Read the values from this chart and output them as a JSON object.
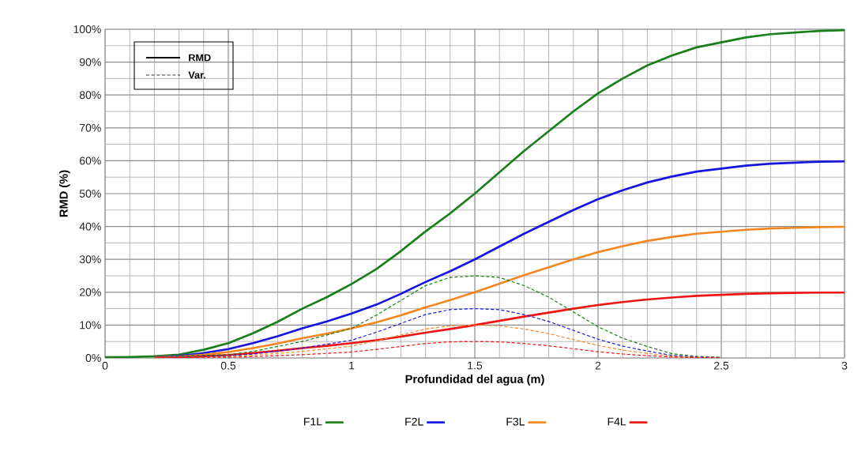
{
  "chart_data": {
    "type": "line",
    "xlabel": "Profundidad del agua (m)",
    "ylabel": "RMD (%)",
    "annotations": [
      "RMD",
      "Var."
    ],
    "x": [
      0,
      0.1,
      0.2,
      0.3,
      0.4,
      0.5,
      0.6,
      0.7,
      0.8,
      0.9,
      1.0,
      1.1,
      1.2,
      1.3,
      1.4,
      1.5,
      1.6,
      1.7,
      1.8,
      1.9,
      2.0,
      2.1,
      2.2,
      2.3,
      2.4,
      2.5,
      2.6,
      2.7,
      2.8,
      2.9,
      3.0
    ],
    "xlim": [
      0,
      3
    ],
    "xticks": [
      0,
      0.5,
      1,
      1.5,
      2,
      2.5,
      3
    ],
    "ylim": [
      0,
      100
    ],
    "yticks": [
      {
        "value": 0,
        "label": "0%"
      },
      {
        "value": 10,
        "label": "10%"
      },
      {
        "value": 20,
        "label": "20%"
      },
      {
        "value": 30,
        "label": "30%"
      },
      {
        "value": 40,
        "label": "40%"
      },
      {
        "value": 50,
        "label": "50%"
      },
      {
        "value": 60,
        "label": "60%"
      },
      {
        "value": 70,
        "label": "70%"
      },
      {
        "value": 80,
        "label": "80%"
      },
      {
        "value": 90,
        "label": "90%"
      },
      {
        "value": 100,
        "label": "100%"
      }
    ],
    "grid": true,
    "legend": "bottom",
    "marker": "none",
    "series": [
      {
        "name": "F1L",
        "color": "#1a7f1a",
        "line_style": "solid",
        "values": [
          0.2,
          0.3,
          0.5,
          1,
          2.5,
          4.5,
          7.5,
          11,
          15,
          18.5,
          22.5,
          27,
          32.5,
          38.5,
          44,
          50,
          56.5,
          63,
          69,
          75,
          80.5,
          85,
          89,
          92,
          94.5,
          96,
          97.5,
          98.5,
          99,
          99.5,
          99.7
        ]
      },
      {
        "name": "F2L",
        "color": "#1515e0",
        "line_style": "solid",
        "values": [
          null,
          null,
          0.3,
          0.6,
          1.5,
          2.7,
          4.5,
          6.6,
          9,
          11.1,
          13.5,
          16.2,
          19.5,
          23.1,
          26.4,
          30,
          33.9,
          37.8,
          41.4,
          45,
          48.3,
          51,
          53.4,
          55.2,
          56.7,
          57.6,
          58.5,
          59.1,
          59.4,
          59.7,
          59.8
        ]
      },
      {
        "name": "F3L",
        "color": "#f5861f",
        "line_style": "solid",
        "values": [
          null,
          null,
          0.2,
          0.4,
          1,
          1.8,
          3,
          4.4,
          6,
          7.4,
          9,
          10.8,
          13,
          15.4,
          17.6,
          20,
          22.6,
          25.2,
          27.6,
          30,
          32.2,
          34,
          35.6,
          36.8,
          37.8,
          38.4,
          39,
          39.4,
          39.6,
          39.8,
          39.9
        ]
      },
      {
        "name": "F4L",
        "color": "#f01515",
        "line_style": "solid",
        "values": [
          null,
          null,
          0.1,
          0.2,
          0.5,
          0.9,
          1.5,
          2.2,
          3,
          3.7,
          4.5,
          5.4,
          6.5,
          7.7,
          8.8,
          10,
          11.3,
          12.6,
          13.8,
          15,
          16.1,
          17,
          17.8,
          18.4,
          18.9,
          19.2,
          19.5,
          19.7,
          19.8,
          19.9,
          19.9
        ]
      },
      {
        "color": "#1a7f1a",
        "line_style": "dashed",
        "values": [
          null,
          null,
          0.2,
          0.5,
          0.8,
          1,
          2,
          3.5,
          5,
          7,
          9,
          13,
          17.5,
          22,
          24.5,
          25,
          24.5,
          22,
          18.5,
          14,
          9.5,
          6,
          3.5,
          1.3,
          0.5,
          0.2,
          null,
          null,
          null,
          null,
          null
        ]
      },
      {
        "color": "#1515e0",
        "line_style": "dashed",
        "values": [
          null,
          null,
          0.1,
          0.3,
          0.5,
          0.6,
          1.2,
          2.1,
          3,
          4.2,
          5.4,
          7.8,
          10.5,
          13.2,
          14.7,
          15,
          14.7,
          13.2,
          11.1,
          8.4,
          5.7,
          3.6,
          2.1,
          0.8,
          0.3,
          0.1,
          null,
          null,
          null,
          null,
          null
        ]
      },
      {
        "color": "#f5861f",
        "line_style": "dashed",
        "values": [
          null,
          null,
          0.1,
          0.2,
          0.3,
          0.4,
          0.8,
          1.4,
          2,
          2.8,
          3.6,
          5.2,
          7,
          8.8,
          9.8,
          10,
          9.8,
          8.8,
          7.4,
          5.6,
          3.8,
          2.4,
          1.4,
          0.5,
          0.2,
          0.1,
          null,
          null,
          null,
          null,
          null
        ]
      },
      {
        "color": "#f01515",
        "line_style": "dashed",
        "values": [
          null,
          null,
          0,
          0.1,
          0.2,
          0.2,
          0.4,
          0.7,
          1,
          1.4,
          1.8,
          2.6,
          3.5,
          4.4,
          4.9,
          5,
          4.9,
          4.4,
          3.7,
          2.8,
          1.9,
          1.2,
          0.7,
          0.3,
          0.1,
          0,
          null,
          null,
          null,
          null,
          null
        ]
      }
    ]
  }
}
